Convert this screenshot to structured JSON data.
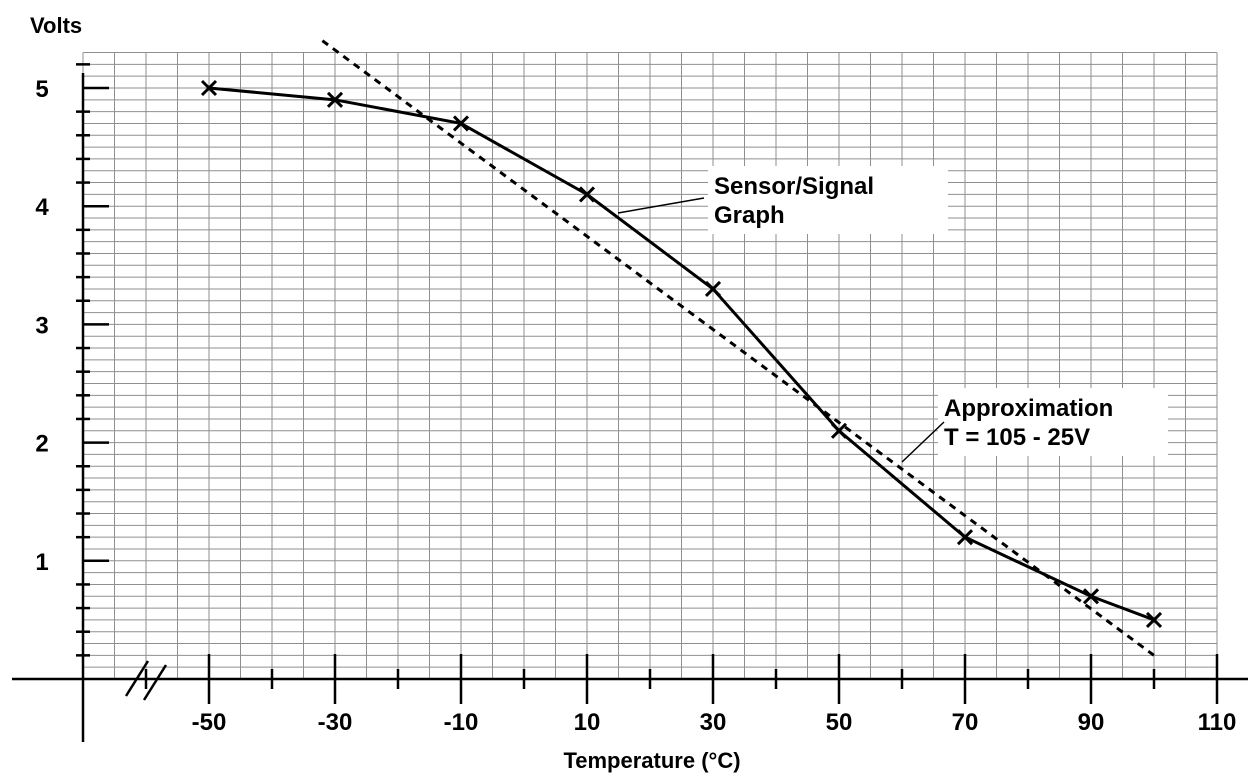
{
  "chart_data": {
    "type": "line",
    "ylabel": "Volts",
    "xlabel": "Temperature (°C)",
    "xlim": [
      -70,
      110
    ],
    "ylim": [
      0,
      5.3
    ],
    "x_ticks": [
      -50,
      -30,
      -10,
      10,
      30,
      50,
      70,
      90,
      110
    ],
    "y_ticks": [
      1,
      2,
      3,
      4,
      5
    ],
    "grid": true,
    "axis_break": "x-axis",
    "series": [
      {
        "points": [
          {
            "x": -50,
            "y": 5.0
          },
          {
            "x": -30,
            "y": 4.9
          },
          {
            "x": -10,
            "y": 4.7
          },
          {
            "x": 10,
            "y": 4.1
          },
          {
            "x": 30,
            "y": 3.3
          },
          {
            "x": 50,
            "y": 2.1
          },
          {
            "x": 70,
            "y": 1.2
          },
          {
            "x": 90,
            "y": 0.7
          },
          {
            "x": 100,
            "y": 0.5
          }
        ],
        "marker": "x",
        "style": "solid"
      },
      {
        "points": [
          {
            "x": -32,
            "y": 5.4
          },
          {
            "x": 100,
            "y": 0.2
          }
        ],
        "style": "dashed"
      }
    ],
    "annotations": [
      {
        "lines": [
          "Sensor/Signal",
          "Graph"
        ]
      },
      {
        "lines": [
          "Approximation",
          "T = 105 - 25V"
        ]
      }
    ]
  }
}
